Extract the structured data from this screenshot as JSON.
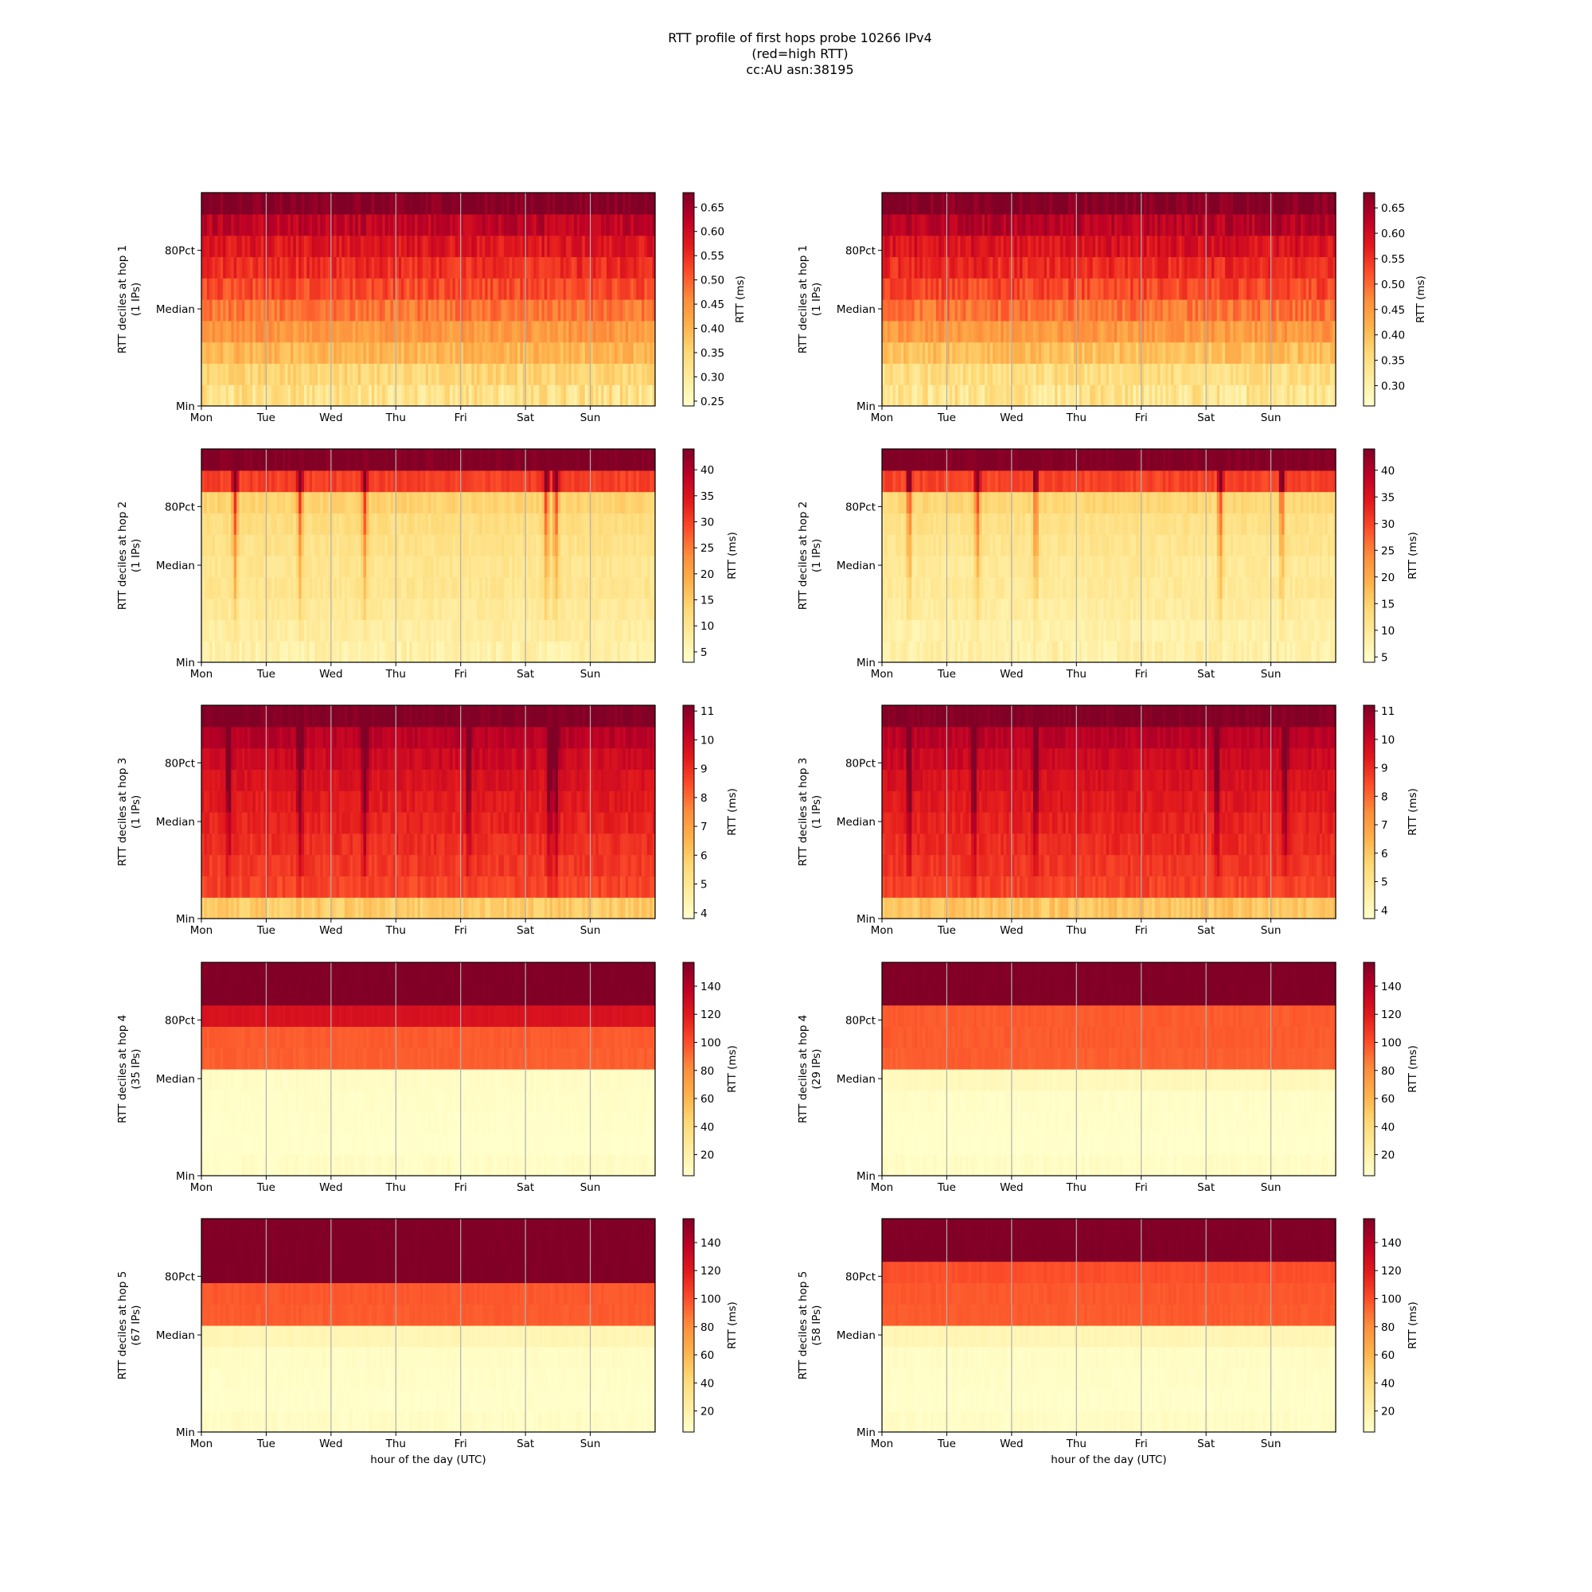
{
  "title_lines": [
    "RTT profile of first hops probe 10266 IPv4",
    "(red=high RTT)",
    "cc:AU asn:38195"
  ],
  "shared": {
    "day_ticks": [
      "Mon",
      "Tue",
      "Wed",
      "Thu",
      "Fri",
      "Sat",
      "Sun"
    ],
    "y_ticks": [
      "Min",
      "Median",
      "80Pct"
    ],
    "colorbar_label": "RTT (ms)",
    "xlabel": "hour of the day (UTC)",
    "colormap": [
      "#ffffcc",
      "#ffeda0",
      "#fed976",
      "#feb24c",
      "#fd8d3c",
      "#fc4e2a",
      "#e31a1c",
      "#bd0026",
      "#800026"
    ]
  },
  "chart_data": [
    {
      "type": "heatmap",
      "hop": 1,
      "ylabel_lines": [
        "RTT deciles at hop 1",
        "(1 IPs)"
      ],
      "vmin": 0.24,
      "vmax": 0.68,
      "cbar_ticks": [
        "0.25",
        "0.30",
        "0.35",
        "0.40",
        "0.45",
        "0.50",
        "0.55",
        "0.60",
        "0.65"
      ],
      "deciles": [
        0.28,
        0.35,
        0.4,
        0.44,
        0.48,
        0.52,
        0.55,
        0.58,
        0.62,
        0.68
      ],
      "noise": 0.03,
      "dips": []
    },
    {
      "type": "heatmap",
      "hop": 1,
      "ylabel_lines": [
        "RTT deciles at hop 1",
        "(1 IPs)"
      ],
      "vmin": 0.26,
      "vmax": 0.68,
      "cbar_ticks": [
        "0.30",
        "0.35",
        "0.40",
        "0.45",
        "0.50",
        "0.55",
        "0.60",
        "0.65"
      ],
      "deciles": [
        0.29,
        0.35,
        0.4,
        0.45,
        0.49,
        0.53,
        0.56,
        0.59,
        0.63,
        0.68
      ],
      "noise": 0.03,
      "dips": []
    },
    {
      "type": "heatmap",
      "hop": 2,
      "ylabel_lines": [
        "RTT deciles at hop 2",
        "(1 IPs)"
      ],
      "vmin": 3,
      "vmax": 44,
      "cbar_ticks": [
        "5",
        "10",
        "15",
        "20",
        "25",
        "30",
        "35",
        "40"
      ],
      "deciles": [
        5,
        8,
        9,
        10,
        10,
        11,
        12,
        14,
        30,
        44
      ],
      "noise": 1.5,
      "dips": [
        0.5,
        1.5,
        2.5,
        5.3,
        5.45
      ]
    },
    {
      "type": "heatmap",
      "hop": 2,
      "ylabel_lines": [
        "RTT deciles at hop 2",
        "(1 IPs)"
      ],
      "vmin": 4,
      "vmax": 44,
      "cbar_ticks": [
        "5",
        "10",
        "15",
        "20",
        "25",
        "30",
        "35",
        "40"
      ],
      "deciles": [
        6,
        8,
        9,
        10,
        10,
        11,
        12,
        14,
        30,
        44
      ],
      "noise": 1.5,
      "dips": [
        0.4,
        1.45,
        2.35,
        5.2,
        6.15
      ]
    },
    {
      "type": "heatmap",
      "hop": 3,
      "ylabel_lines": [
        "RTT deciles at hop 3",
        "(1 IPs)"
      ],
      "vmin": 3.8,
      "vmax": 11.2,
      "cbar_ticks": [
        "4",
        "5",
        "6",
        "7",
        "8",
        "9",
        "10",
        "11"
      ],
      "deciles": [
        5.5,
        8.6,
        8.8,
        9.0,
        9.2,
        9.4,
        9.6,
        9.9,
        10.3,
        11.2
      ],
      "noise": 0.3,
      "dips": [
        0.4,
        1.5,
        2.5,
        4.1,
        5.35,
        5.45
      ]
    },
    {
      "type": "heatmap",
      "hop": 3,
      "ylabel_lines": [
        "RTT deciles at hop 3",
        "(1 IPs)"
      ],
      "vmin": 3.7,
      "vmax": 11.2,
      "cbar_ticks": [
        "4",
        "5",
        "6",
        "7",
        "8",
        "9",
        "10",
        "11"
      ],
      "deciles": [
        5.6,
        8.6,
        8.8,
        9.0,
        9.2,
        9.4,
        9.6,
        9.9,
        10.3,
        11.2
      ],
      "noise": 0.3,
      "dips": [
        0.4,
        1.4,
        2.35,
        5.15,
        6.2
      ]
    },
    {
      "type": "heatmap",
      "hop": 4,
      "ylabel_lines": [
        "RTT deciles at hop 4",
        "(35 IPs)"
      ],
      "vmin": 5,
      "vmax": 157,
      "cbar_ticks": [
        "20",
        "40",
        "60",
        "80",
        "100",
        "120",
        "140"
      ],
      "deciles": [
        5,
        5,
        6,
        7,
        8,
        95,
        96,
        125,
        157,
        157
      ],
      "noise": 2,
      "dips": []
    },
    {
      "type": "heatmap",
      "hop": 4,
      "ylabel_lines": [
        "RTT deciles at hop 4",
        "(29 IPs)"
      ],
      "vmin": 5,
      "vmax": 157,
      "cbar_ticks": [
        "20",
        "40",
        "60",
        "80",
        "100",
        "120",
        "140"
      ],
      "deciles": [
        5,
        5,
        6,
        7,
        12,
        95,
        96,
        96,
        157,
        157
      ],
      "noise": 2,
      "dips": []
    },
    {
      "type": "heatmap",
      "hop": 5,
      "ylabel_lines": [
        "RTT deciles at hop 5",
        "(67 IPs)"
      ],
      "vmin": 5,
      "vmax": 157,
      "cbar_ticks": [
        "20",
        "40",
        "60",
        "80",
        "100",
        "120",
        "140"
      ],
      "deciles": [
        5,
        6,
        7,
        8,
        15,
        96,
        97,
        157,
        157,
        157
      ],
      "noise": 2,
      "dips": []
    },
    {
      "type": "heatmap",
      "hop": 5,
      "ylabel_lines": [
        "RTT deciles at hop 5",
        "(58 IPs)"
      ],
      "vmin": 5,
      "vmax": 157,
      "cbar_ticks": [
        "20",
        "40",
        "60",
        "80",
        "100",
        "120",
        "140"
      ],
      "deciles": [
        5,
        6,
        7,
        8,
        15,
        96,
        97,
        100,
        157,
        157
      ],
      "noise": 2,
      "dips": []
    }
  ]
}
